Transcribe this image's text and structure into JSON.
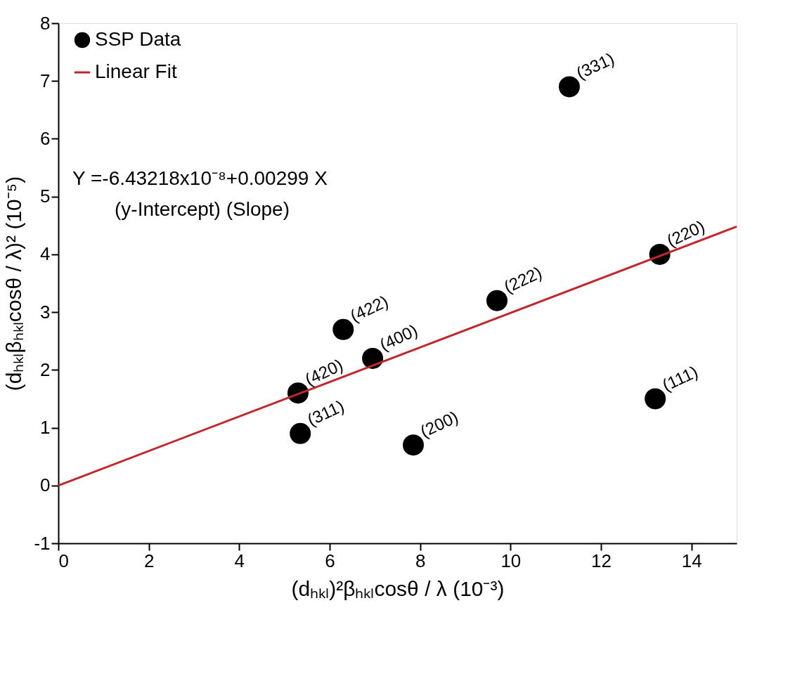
{
  "chart_data": {
    "type": "scatter",
    "xlabel": "(dₕₖₗ)²βₕₖₗcosθ / λ        (10⁻³)",
    "ylabel": "(dₕₖₗβₕₖₗcosθ / λ)²        (10⁻⁵)",
    "xlim": [
      0,
      15
    ],
    "xticks": [
      0,
      2,
      4,
      6,
      8,
      10,
      12,
      14
    ],
    "ylim": [
      -1,
      8
    ],
    "yticks": [
      -1,
      0,
      1,
      2,
      3,
      4,
      5,
      6,
      7,
      8
    ],
    "grid": false,
    "legend": "top left",
    "series": [
      {
        "name": "SSP Data",
        "marker": "circle",
        "color": "#000000",
        "x": [
          5.3,
          5.35,
          6.3,
          6.95,
          7.85,
          9.7,
          11.3,
          13.3,
          13.2
        ],
        "values": [
          1.6,
          0.9,
          2.7,
          2.2,
          0.7,
          3.2,
          6.9,
          4.0,
          1.5
        ]
      },
      {
        "name": "Linear Fit",
        "type": "line",
        "marker": "none",
        "line_style": "solid",
        "color": "#c0272d",
        "x": [
          0,
          15
        ],
        "values": [
          0,
          4.48
        ]
      }
    ],
    "annotations": [
      {
        "text": "(420)",
        "x": 5.3,
        "y": 1.6
      },
      {
        "text": "(311)",
        "x": 5.35,
        "y": 0.9
      },
      {
        "text": "(422)",
        "x": 6.3,
        "y": 2.7
      },
      {
        "text": "(400)",
        "x": 6.95,
        "y": 2.2
      },
      {
        "text": "(200)",
        "x": 7.85,
        "y": 0.7
      },
      {
        "text": "(222)",
        "x": 9.7,
        "y": 3.2
      },
      {
        "text": "(331)",
        "x": 11.3,
        "y": 6.9
      },
      {
        "text": "(220)",
        "x": 13.3,
        "y": 4.0
      },
      {
        "text": "(111)",
        "x": 13.2,
        "y": 1.5
      },
      "Y =-6.43218x10⁻⁸+0.00299 X",
      "(y-Intercept)      (Slope)"
    ]
  }
}
